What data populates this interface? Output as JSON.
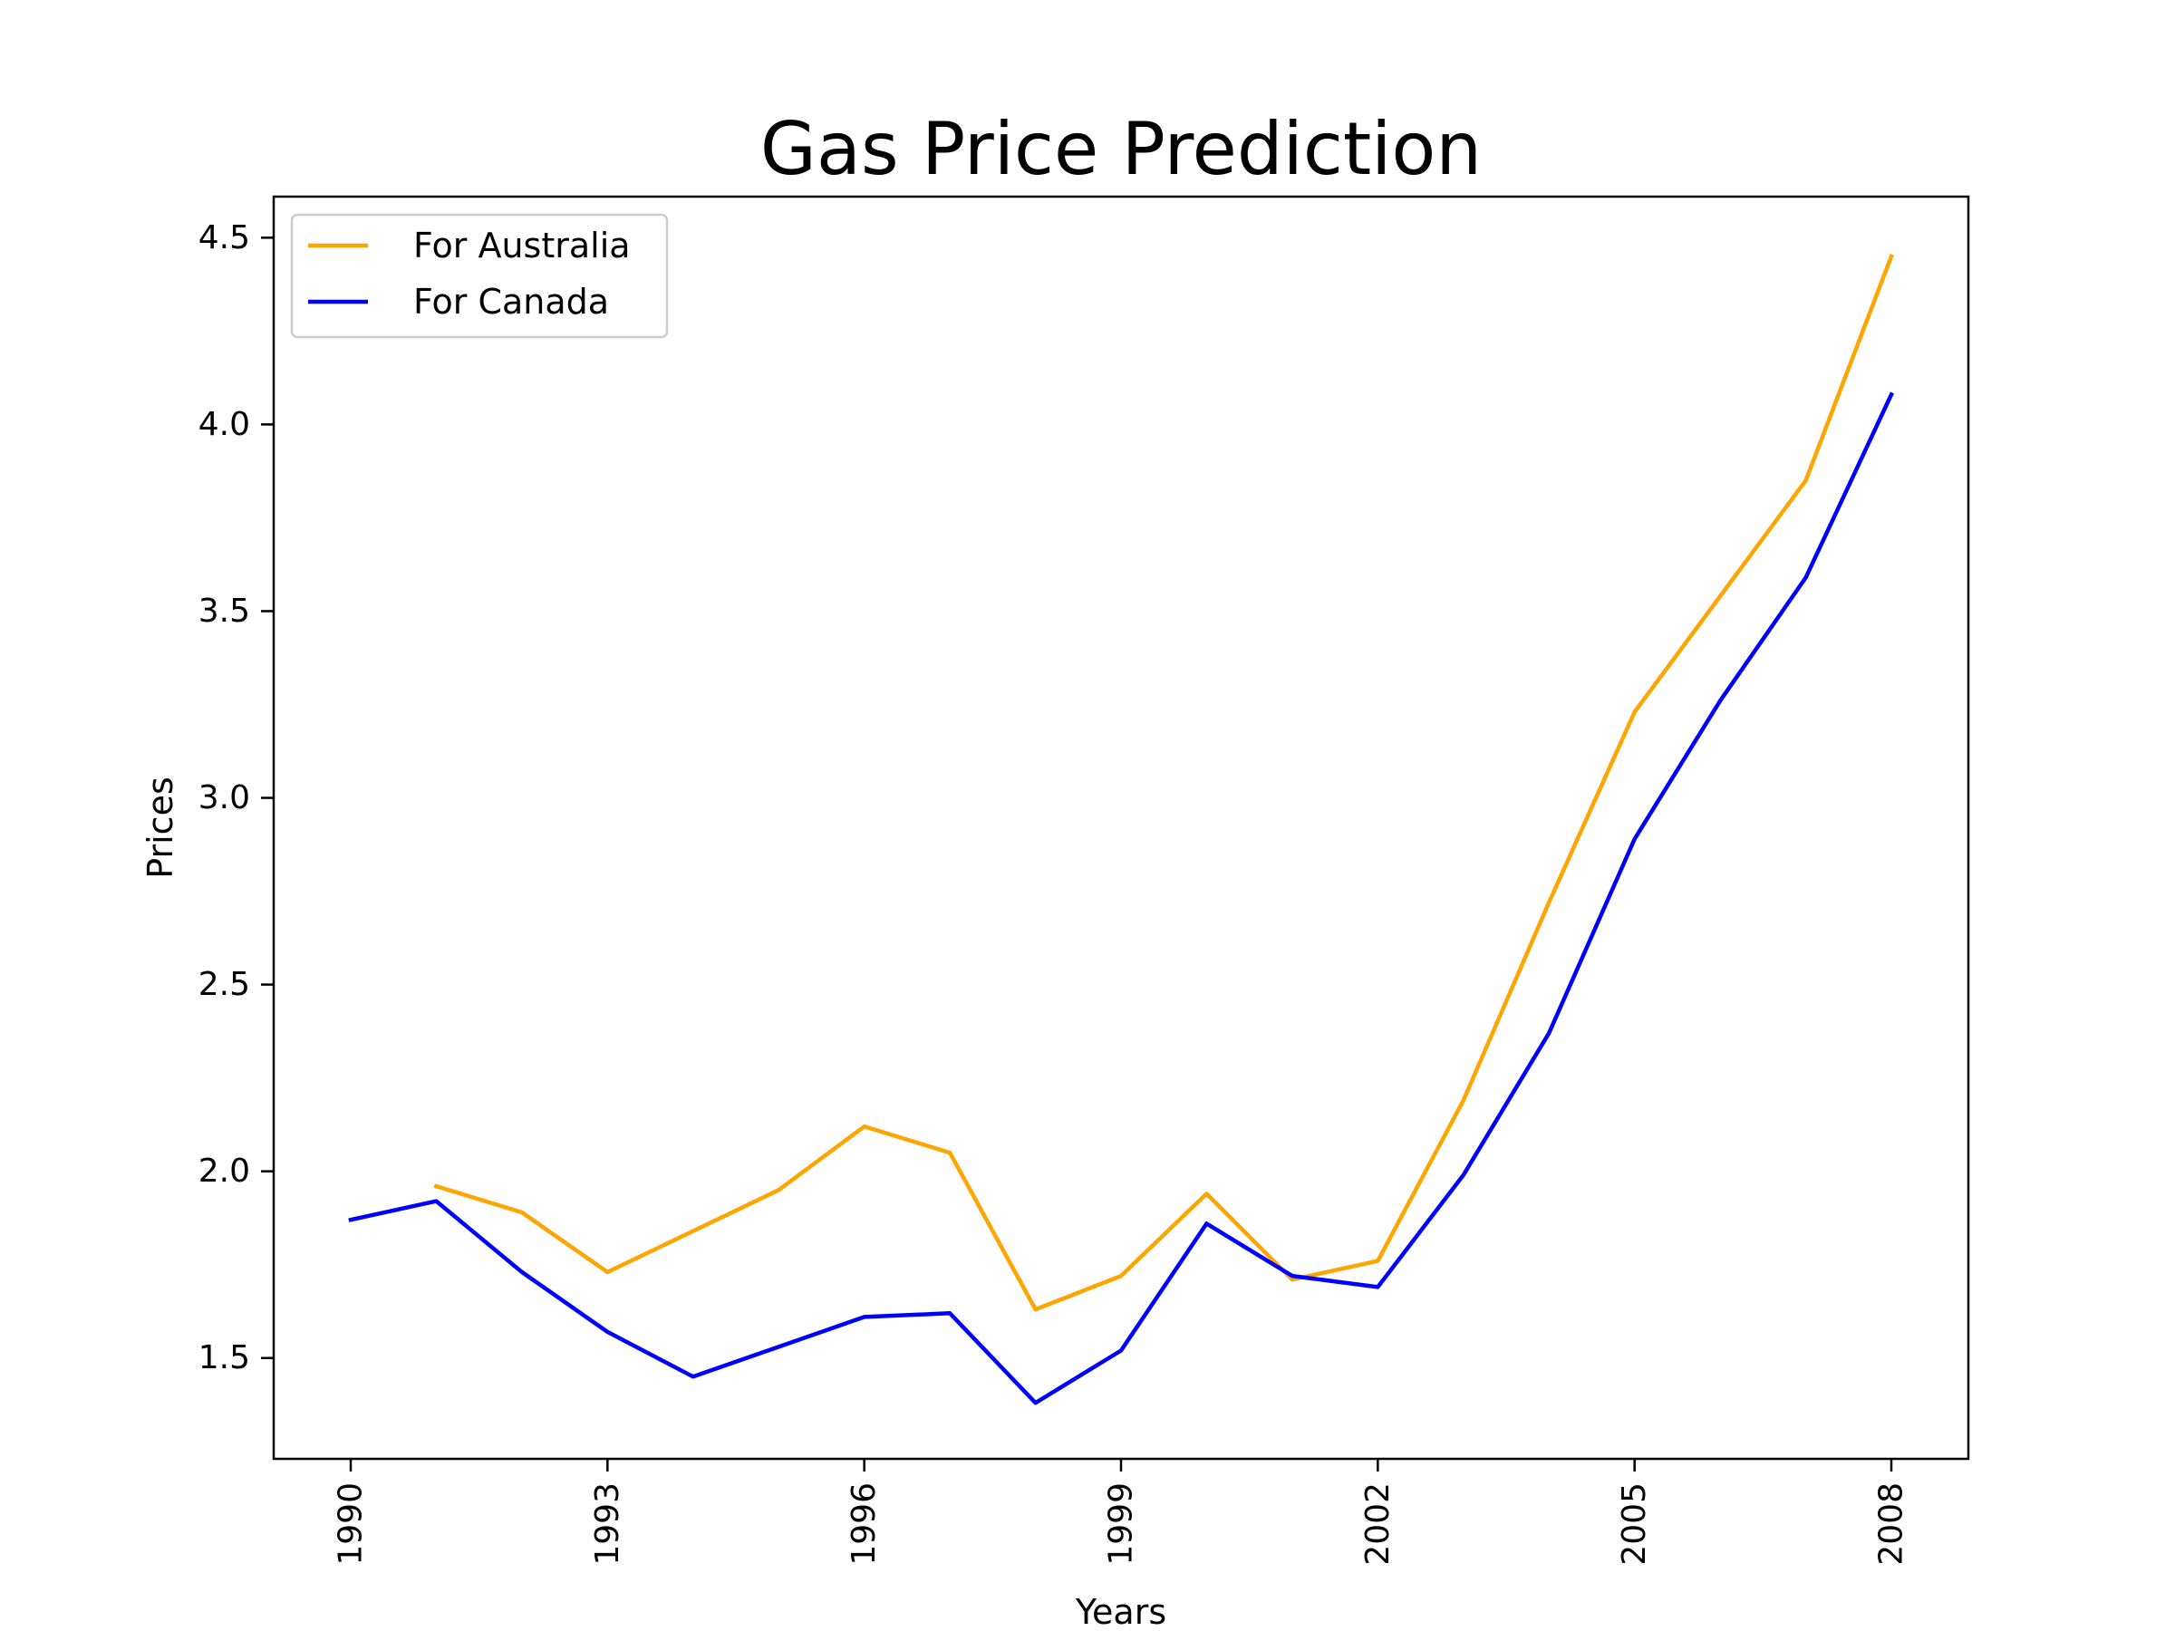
{
  "chart_data": {
    "type": "line",
    "title": "Gas Price Prediction",
    "xlabel": "Years",
    "ylabel": "Prices",
    "xlim": [
      1989.1,
      2008.9
    ],
    "ylim": [
      1.23,
      4.61
    ],
    "xticks": [
      1990,
      1993,
      1996,
      1999,
      2002,
      2005,
      2008
    ],
    "xtick_labels": [
      "1990",
      "1993",
      "1996",
      "1999",
      "2002",
      "2005",
      "2008"
    ],
    "yticks": [
      1.5,
      2.0,
      2.5,
      3.0,
      3.5,
      4.0,
      4.5
    ],
    "ytick_labels": [
      "1.5",
      "2.0",
      "2.5",
      "3.0",
      "3.5",
      "4.0",
      "4.5"
    ],
    "grid": false,
    "legend_position": "top-left",
    "series": [
      {
        "name": "For Australia",
        "color": "#FFA500",
        "x": [
          1991,
          1992,
          1993,
          1994,
          1995,
          1996,
          1997,
          1998,
          1999,
          2000,
          2001,
          2002,
          2003,
          2004,
          2005,
          2006,
          2007,
          2008
        ],
        "y": [
          1.96,
          1.89,
          1.73,
          1.84,
          1.95,
          2.12,
          2.05,
          1.63,
          1.72,
          1.94,
          1.71,
          1.76,
          2.19,
          2.72,
          3.23,
          3.54,
          3.85,
          4.45
        ]
      },
      {
        "name": "For Canada",
        "color": "#0000FF",
        "x": [
          1990,
          1991,
          1992,
          1993,
          1994,
          1995,
          1996,
          1997,
          1998,
          1999,
          2000,
          2001,
          2002,
          2003,
          2004,
          2005,
          2006,
          2007,
          2008
        ],
        "y": [
          1.87,
          1.92,
          1.73,
          1.57,
          1.45,
          1.53,
          1.61,
          1.62,
          1.38,
          1.52,
          1.86,
          1.72,
          1.69,
          1.99,
          2.37,
          2.89,
          3.26,
          3.59,
          4.08
        ]
      }
    ]
  }
}
